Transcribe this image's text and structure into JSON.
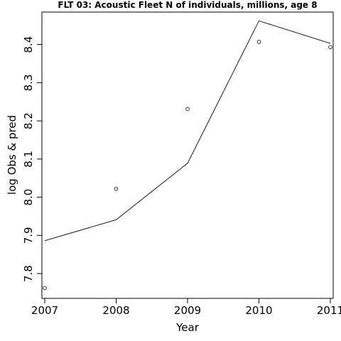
{
  "chart_data": {
    "type": "line",
    "title": "FLT 03: Acoustic Fleet  N of individuals, millions, age 8",
    "xlabel": "Year",
    "ylabel": "log Obs & pred",
    "xlim": [
      2006.96,
      2011.04
    ],
    "ylim": [
      7.735,
      8.485
    ],
    "x_ticks": [
      2007,
      2008,
      2009,
      2010,
      2011
    ],
    "y_ticks": [
      7.8,
      7.9,
      8.0,
      8.1,
      8.2,
      8.3,
      8.4
    ],
    "grid": false,
    "series": [
      {
        "kind": "points",
        "x": [
          2007,
          2008,
          2009,
          2010,
          2011
        ],
        "y": [
          7.762,
          8.022,
          8.231,
          8.407,
          8.393
        ]
      },
      {
        "kind": "line",
        "x": [
          2007,
          2008,
          2009,
          2010,
          2011
        ],
        "y": [
          7.886,
          7.941,
          8.089,
          8.462,
          8.403
        ]
      }
    ]
  }
}
